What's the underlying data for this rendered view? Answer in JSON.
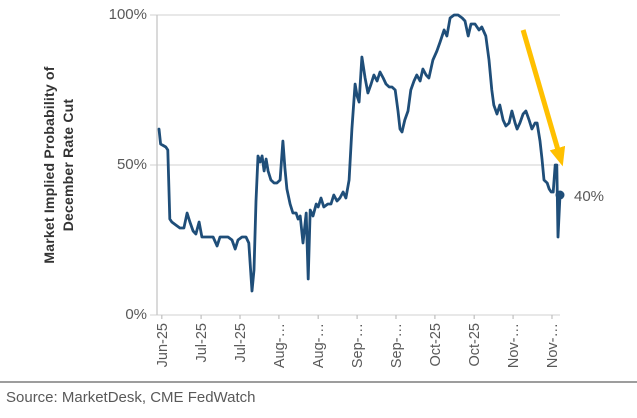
{
  "source": "Source: MarketDesk, CME FedWatch",
  "colors": {
    "line": "#1F4E79",
    "end_dot": "#1F4E79",
    "arrow": "#FFC000",
    "grid": "#D9D9D9",
    "axis": "#C6C6C6",
    "tick_mark": "#BFBFBF",
    "tick_text": "#595959",
    "title_text": "#333333"
  },
  "chart_data": {
    "type": "line",
    "title": "",
    "xlabel": "",
    "ylabel": "Market Implied Probability of December Rate Cut",
    "ylabel_lines": [
      "Market Implied Probability of",
      "December Rate Cut"
    ],
    "ylim": [
      0,
      100
    ],
    "yticks": [
      0,
      50,
      100
    ],
    "ytick_labels": [
      "0%",
      "50%",
      "100%"
    ],
    "xtick_labels": [
      "Jun-25",
      "Jul-25",
      "Jul-25",
      "Aug-…",
      "Aug-…",
      "Sep-…",
      "Sep-…",
      "Oct-25",
      "Oct-25",
      "Nov-…",
      "Nov-…"
    ],
    "xtick_fracs": [
      0.7,
      10.5,
      20.2,
      29.9,
      39.7,
      49.4,
      59.1,
      68.8,
      78.6,
      88.3,
      98.0
    ],
    "grid": "horizontal",
    "legend": "none",
    "end_label": "40%",
    "end_value": 40,
    "trend_arrow": {
      "from": [
        90.8,
        95
      ],
      "to": [
        99.5,
        55
      ]
    },
    "series": [
      {
        "name": "Market implied probability of December rate cut",
        "points": [
          [
            0,
            62
          ],
          [
            0.4,
            57
          ],
          [
            1.7,
            56
          ],
          [
            2.2,
            55
          ],
          [
            2.7,
            32
          ],
          [
            3.2,
            31
          ],
          [
            4.2,
            30
          ],
          [
            5.2,
            29
          ],
          [
            6.2,
            29
          ],
          [
            7,
            34
          ],
          [
            7.7,
            31
          ],
          [
            8.5,
            28
          ],
          [
            9.2,
            27
          ],
          [
            10,
            31
          ],
          [
            10.7,
            26
          ],
          [
            11.7,
            26
          ],
          [
            12.7,
            26
          ],
          [
            13.5,
            26
          ],
          [
            14.5,
            23
          ],
          [
            15.2,
            26
          ],
          [
            16.2,
            26
          ],
          [
            17.2,
            26
          ],
          [
            18.2,
            25
          ],
          [
            19,
            22
          ],
          [
            19.7,
            25
          ],
          [
            20.7,
            26
          ],
          [
            21.7,
            26
          ],
          [
            22.4,
            24
          ],
          [
            23.2,
            8
          ],
          [
            23.7,
            15
          ],
          [
            24.2,
            38
          ],
          [
            24.7,
            53
          ],
          [
            25.2,
            51
          ],
          [
            25.7,
            53
          ],
          [
            26.2,
            48
          ],
          [
            26.7,
            52
          ],
          [
            27.2,
            48
          ],
          [
            27.9,
            45
          ],
          [
            28.7,
            44
          ],
          [
            29.4,
            44
          ],
          [
            30.2,
            45
          ],
          [
            30.9,
            58
          ],
          [
            31.4,
            49
          ],
          [
            31.9,
            42
          ],
          [
            32.7,
            37
          ],
          [
            33.4,
            34
          ],
          [
            34.2,
            34
          ],
          [
            34.7,
            32
          ],
          [
            35.2,
            33
          ],
          [
            35.9,
            24
          ],
          [
            36.7,
            34
          ],
          [
            37.2,
            12
          ],
          [
            37.7,
            35
          ],
          [
            38.4,
            33
          ],
          [
            39.2,
            37
          ],
          [
            39.7,
            36
          ],
          [
            40.4,
            39
          ],
          [
            41.1,
            36
          ],
          [
            42.1,
            37
          ],
          [
            42.9,
            37
          ],
          [
            43.6,
            40
          ],
          [
            44.4,
            38
          ],
          [
            45.1,
            39
          ],
          [
            45.9,
            41
          ],
          [
            46.6,
            39
          ],
          [
            47.4,
            45
          ],
          [
            48.1,
            62
          ],
          [
            48.9,
            77
          ],
          [
            49.4,
            73
          ],
          [
            49.9,
            71
          ],
          [
            50.6,
            86
          ],
          [
            51.4,
            79
          ],
          [
            52.1,
            74
          ],
          [
            52.9,
            77
          ],
          [
            53.6,
            80
          ],
          [
            54.4,
            78
          ],
          [
            55.1,
            81
          ],
          [
            55.9,
            79
          ],
          [
            56.6,
            77
          ],
          [
            57.4,
            76
          ],
          [
            58.1,
            76
          ],
          [
            58.9,
            75
          ],
          [
            59.6,
            68
          ],
          [
            60.1,
            62
          ],
          [
            60.6,
            61
          ],
          [
            61.3,
            65
          ],
          [
            62.1,
            68
          ],
          [
            62.8,
            75
          ],
          [
            63.6,
            78
          ],
          [
            64.3,
            80
          ],
          [
            65.1,
            78
          ],
          [
            65.8,
            82
          ],
          [
            66.6,
            80
          ],
          [
            67.3,
            79
          ],
          [
            68.3,
            85
          ],
          [
            69.3,
            88
          ],
          [
            70.1,
            91
          ],
          [
            71.1,
            95
          ],
          [
            71.8,
            93
          ],
          [
            72.6,
            99
          ],
          [
            73.6,
            100
          ],
          [
            74.6,
            100
          ],
          [
            75.6,
            99
          ],
          [
            76.3,
            98
          ],
          [
            77.1,
            93
          ],
          [
            77.8,
            97
          ],
          [
            78.8,
            97
          ],
          [
            79.8,
            95
          ],
          [
            80.5,
            96
          ],
          [
            81.5,
            93
          ],
          [
            82.3,
            85
          ],
          [
            83,
            75
          ],
          [
            83.5,
            70
          ],
          [
            84.3,
            67
          ],
          [
            85,
            70
          ],
          [
            85.8,
            65
          ],
          [
            86.5,
            63
          ],
          [
            87.3,
            64
          ],
          [
            88,
            68
          ],
          [
            88.8,
            64
          ],
          [
            89.3,
            62
          ],
          [
            90,
            64
          ],
          [
            90.8,
            67
          ],
          [
            91.5,
            68
          ],
          [
            92.3,
            65
          ],
          [
            93,
            62
          ],
          [
            93.8,
            64
          ],
          [
            94.3,
            64
          ],
          [
            95,
            58
          ],
          [
            95.5,
            52
          ],
          [
            96,
            45
          ],
          [
            96.8,
            44
          ],
          [
            97.3,
            42
          ],
          [
            97.8,
            41
          ],
          [
            98.3,
            41
          ],
          [
            98.8,
            50
          ],
          [
            99.2,
            50
          ],
          [
            99.5,
            26
          ],
          [
            100,
            40
          ]
        ]
      }
    ]
  }
}
